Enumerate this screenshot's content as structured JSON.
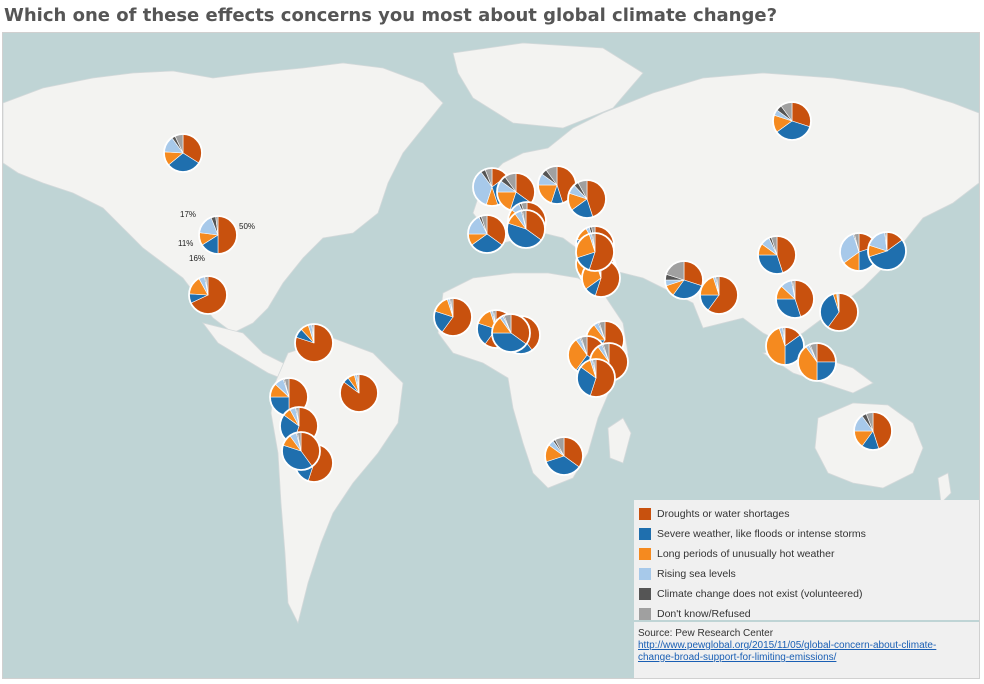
{
  "title": "Which one of these effects concerns you most about global climate change?",
  "colors": {
    "droughts": "#c8510e",
    "severe": "#1f6fae",
    "hot": "#f58a1f",
    "sea": "#a7c9ea",
    "notexist": "#555555",
    "dontknow": "#a0a0a0",
    "ocean": "#bfd4d5",
    "land": "#f3f3f1"
  },
  "legend": {
    "items": [
      {
        "key": "droughts",
        "label": "Droughts or water shortages"
      },
      {
        "key": "severe",
        "label": "Severe weather, like floods or intense storms"
      },
      {
        "key": "hot",
        "label": "Long periods of unusually hot weather"
      },
      {
        "key": "sea",
        "label": "Rising sea levels"
      },
      {
        "key": "notexist",
        "label": "Climate change does not exist (volunteered)"
      },
      {
        "key": "dontknow",
        "label": "Don't know/Refused"
      }
    ]
  },
  "source": {
    "prefix": "Source: Pew Research Center ",
    "link_text": "http://www.pewglobal.org/2015/11/05/global-concern-about-climate-change-broad-support-for-limiting-emissions/"
  },
  "us_labels": {
    "droughts": "50%",
    "sea": "17%",
    "severe": "16%",
    "hot": "11%"
  },
  "countries": [
    {
      "name": "Canada",
      "values": [
        34,
        30,
        12,
        14,
        3,
        7
      ]
    },
    {
      "name": "United States",
      "values": [
        50,
        16,
        11,
        17,
        4,
        2
      ]
    },
    {
      "name": "Mexico",
      "values": [
        68,
        8,
        16,
        5,
        1,
        2
      ]
    },
    {
      "name": "Venezuela",
      "values": [
        80,
        8,
        7,
        3,
        1,
        1
      ]
    },
    {
      "name": "Brazil",
      "values": [
        85,
        5,
        6,
        2,
        1,
        1
      ]
    },
    {
      "name": "Peru",
      "values": [
        50,
        25,
        12,
        8,
        1,
        4
      ]
    },
    {
      "name": "Chile",
      "values": [
        55,
        30,
        7,
        5,
        1,
        2
      ]
    },
    {
      "name": "Argentina",
      "values": [
        55,
        30,
        7,
        5,
        1,
        2
      ]
    },
    {
      "name": "Bolivia",
      "values": [
        40,
        40,
        10,
        6,
        1,
        3
      ]
    },
    {
      "name": "United Kingdom",
      "values": [
        15,
        30,
        10,
        35,
        4,
        6
      ]
    },
    {
      "name": "France",
      "values": [
        35,
        30,
        10,
        18,
        2,
        5
      ]
    },
    {
      "name": "Germany",
      "values": [
        35,
        20,
        20,
        10,
        5,
        10
      ]
    },
    {
      "name": "Poland",
      "values": [
        45,
        10,
        20,
        10,
        5,
        10
      ]
    },
    {
      "name": "Spain",
      "values": [
        50,
        20,
        15,
        8,
        2,
        5
      ]
    },
    {
      "name": "Italy",
      "values": [
        35,
        45,
        10,
        6,
        1,
        3
      ]
    },
    {
      "name": "Ukraine",
      "values": [
        45,
        20,
        15,
        8,
        4,
        8
      ]
    },
    {
      "name": "Russia",
      "values": [
        30,
        35,
        15,
        5,
        5,
        10
      ]
    },
    {
      "name": "Turkey",
      "values": [
        60,
        20,
        12,
        3,
        2,
        3
      ]
    },
    {
      "name": "Lebanon",
      "values": [
        40,
        15,
        40,
        2,
        1,
        2
      ]
    },
    {
      "name": "Israel",
      "values": [
        35,
        10,
        40,
        8,
        2,
        5
      ]
    },
    {
      "name": "Jordan",
      "values": [
        55,
        10,
        30,
        2,
        1,
        2
      ]
    },
    {
      "name": "Palestinian ter.",
      "values": [
        55,
        15,
        25,
        2,
        1,
        2
      ]
    },
    {
      "name": "Pakistan",
      "values": [
        30,
        30,
        10,
        5,
        5,
        20
      ]
    },
    {
      "name": "India",
      "values": [
        60,
        15,
        20,
        2,
        1,
        2
      ]
    },
    {
      "name": "China",
      "values": [
        45,
        30,
        10,
        8,
        2,
        5
      ]
    },
    {
      "name": "South Korea",
      "values": [
        20,
        30,
        15,
        30,
        1,
        4
      ]
    },
    {
      "name": "Japan",
      "values": [
        15,
        55,
        10,
        18,
        1,
        1
      ]
    },
    {
      "name": "Vietnam",
      "values": [
        45,
        30,
        12,
        10,
        1,
        2
      ]
    },
    {
      "name": "Philippines",
      "values": [
        60,
        35,
        3,
        1,
        0,
        1
      ]
    },
    {
      "name": "Malaysia",
      "values": [
        15,
        35,
        45,
        3,
        1,
        1
      ]
    },
    {
      "name": "Indonesia",
      "values": [
        25,
        25,
        40,
        3,
        1,
        6
      ]
    },
    {
      "name": "Australia",
      "values": [
        45,
        15,
        15,
        15,
        4,
        6
      ]
    },
    {
      "name": "Senegal",
      "values": [
        60,
        20,
        15,
        2,
        1,
        2
      ]
    },
    {
      "name": "Burkina Faso",
      "values": [
        60,
        20,
        15,
        2,
        1,
        2
      ]
    },
    {
      "name": "Ghana",
      "values": [
        40,
        35,
        20,
        2,
        1,
        2
      ]
    },
    {
      "name": "Nigeria",
      "values": [
        35,
        40,
        15,
        3,
        1,
        6
      ]
    },
    {
      "name": "Ethiopia",
      "values": [
        60,
        15,
        15,
        4,
        1,
        5
      ]
    },
    {
      "name": "Uganda",
      "values": [
        35,
        25,
        30,
        4,
        1,
        5
      ]
    },
    {
      "name": "Kenya",
      "values": [
        50,
        25,
        15,
        4,
        1,
        5
      ]
    },
    {
      "name": "Tanzania",
      "values": [
        55,
        30,
        10,
        2,
        1,
        2
      ]
    },
    {
      "name": "South Africa",
      "values": [
        35,
        35,
        15,
        5,
        2,
        8
      ]
    }
  ]
}
